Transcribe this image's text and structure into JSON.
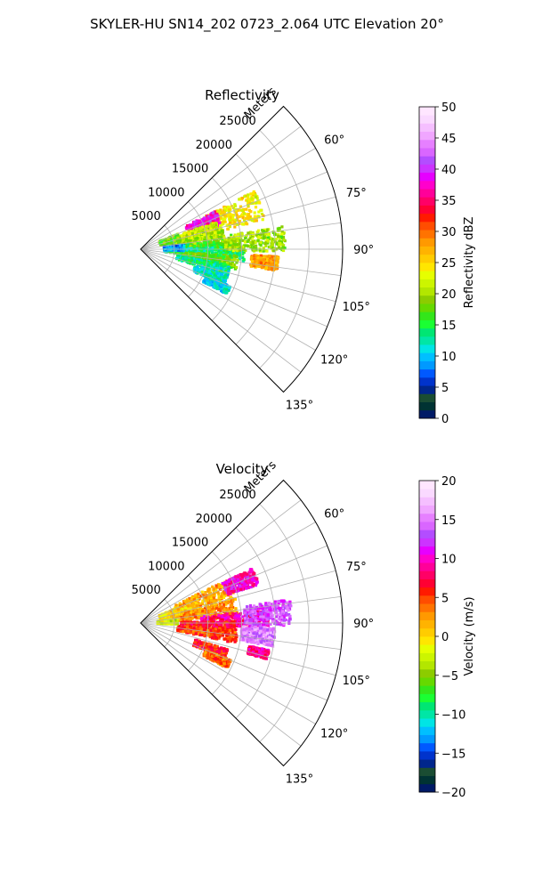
{
  "suptitle": "SKYLER-HU  SN14_202  0723_2.064 UTC Elevation 20°",
  "chart_data": [
    {
      "type": "heatmap",
      "projection": "polar-sector",
      "title": "Reflectivity",
      "range_label": "Meters",
      "range_ticks": [
        5000,
        10000,
        15000,
        20000,
        25000
      ],
      "range_max_m": 30000,
      "azimuth_range_deg": [
        45,
        135
      ],
      "azimuth_tick_labels": [
        "60°",
        "75°",
        "90°",
        "105°",
        "120°",
        "135°"
      ],
      "azimuth_ticks_deg": [
        60,
        75,
        90,
        105,
        120,
        135
      ],
      "grid": true,
      "colorbar": {
        "label": "Reflectivity dBZ",
        "min": 0,
        "max": 50,
        "ticks": [
          0,
          5,
          10,
          15,
          20,
          25,
          30,
          35,
          40,
          45,
          50
        ],
        "tick_labels": [
          "0",
          "5",
          "10",
          "15",
          "20",
          "25",
          "30",
          "35",
          "40",
          "45",
          "50"
        ],
        "colors": [
          "#001a66",
          "#003333",
          "#1a4d33",
          "#00268c",
          "#0033cc",
          "#0059ff",
          "#0099ff",
          "#00bfff",
          "#00e5e5",
          "#00e6a6",
          "#00e673",
          "#1aff33",
          "#33e61a",
          "#66d900",
          "#8ccc00",
          "#b3e600",
          "#ccf500",
          "#e6ff00",
          "#ffe600",
          "#ffcc00",
          "#ffb300",
          "#ff9900",
          "#ff7300",
          "#ff4d00",
          "#ff1a00",
          "#ff0033",
          "#ff0066",
          "#ff0099",
          "#ff00cc",
          "#e600ff",
          "#cc33ff",
          "#b34dff",
          "#d966ff",
          "#e680ff",
          "#f0a6ff",
          "#f5bfff",
          "#fad9ff",
          "#ffe6ff"
        ]
      },
      "echo_cells": [
        {
          "az": 70,
          "r": 14500,
          "w": 9000,
          "az_w": 14,
          "v": 24
        },
        {
          "az": 68,
          "r": 10000,
          "w": 5000,
          "az_w": 10,
          "v": 38
        },
        {
          "az": 76,
          "r": 9000,
          "w": 6000,
          "az_w": 12,
          "v": 22
        },
        {
          "az": 82,
          "r": 8000,
          "w": 9000,
          "az_w": 10,
          "v": 20
        },
        {
          "az": 88,
          "r": 9000,
          "w": 10000,
          "az_w": 8,
          "v": 17
        },
        {
          "az": 93,
          "r": 9500,
          "w": 12000,
          "az_w": 8,
          "v": 14
        },
        {
          "az": 98,
          "r": 10000,
          "w": 9000,
          "az_w": 8,
          "v": 18
        },
        {
          "az": 103,
          "r": 9500,
          "w": 8000,
          "az_w": 6,
          "v": 13
        },
        {
          "az": 86,
          "r": 17000,
          "w": 9000,
          "az_w": 10,
          "v": 20
        },
        {
          "az": 96,
          "r": 18500,
          "w": 4000,
          "az_w": 6,
          "v": 28
        },
        {
          "az": 110,
          "r": 11000,
          "w": 5000,
          "az_w": 6,
          "v": 12
        },
        {
          "az": 115,
          "r": 12500,
          "w": 4000,
          "az_w": 5,
          "v": 11
        },
        {
          "az": 73,
          "r": 4500,
          "w": 3000,
          "az_w": 10,
          "v": 18
        },
        {
          "az": 88,
          "r": 5000,
          "w": 3000,
          "az_w": 8,
          "v": 9
        }
      ]
    },
    {
      "type": "heatmap",
      "projection": "polar-sector",
      "title": "Velocity",
      "range_label": "Meters",
      "range_ticks": [
        5000,
        10000,
        15000,
        20000,
        25000
      ],
      "range_max_m": 30000,
      "azimuth_range_deg": [
        45,
        135
      ],
      "azimuth_tick_labels": [
        "60°",
        "75°",
        "90°",
        "105°",
        "120°",
        "135°"
      ],
      "azimuth_ticks_deg": [
        60,
        75,
        90,
        105,
        120,
        135
      ],
      "grid": true,
      "colorbar": {
        "label": "Velocity (m/s)",
        "min": -20,
        "max": 20,
        "ticks": [
          -20,
          -15,
          -10,
          -5,
          0,
          5,
          10,
          15,
          20
        ],
        "tick_labels": [
          "−20",
          "−15",
          "−10",
          "−5",
          "0",
          "5",
          "10",
          "15",
          "20"
        ],
        "colors": [
          "#001a66",
          "#003333",
          "#1a4d33",
          "#00268c",
          "#0033cc",
          "#0059ff",
          "#0099ff",
          "#00bfff",
          "#00e5e5",
          "#00e6a6",
          "#00e673",
          "#1aff33",
          "#33e61a",
          "#66d900",
          "#8ccc00",
          "#b3e600",
          "#ccf500",
          "#e6ff00",
          "#ffe600",
          "#ffcc00",
          "#ffb300",
          "#ff9900",
          "#ff7300",
          "#ff4d00",
          "#ff1a00",
          "#ff0033",
          "#ff0066",
          "#ff0099",
          "#ff00cc",
          "#e600ff",
          "#cc33ff",
          "#b34dff",
          "#d966ff",
          "#e680ff",
          "#f0a6ff",
          "#f5bfff",
          "#fad9ff",
          "#ffe6ff"
        ]
      },
      "echo_cells": [
        {
          "az": 70,
          "r": 10000,
          "w": 9000,
          "az_w": 14,
          "v": 2
        },
        {
          "az": 68,
          "r": 16000,
          "w": 5000,
          "az_w": 8,
          "v": 10
        },
        {
          "az": 76,
          "r": 6000,
          "w": 6000,
          "az_w": 12,
          "v": 1
        },
        {
          "az": 82,
          "r": 10000,
          "w": 9000,
          "az_w": 10,
          "v": 3
        },
        {
          "az": 88,
          "r": 14000,
          "w": 10000,
          "az_w": 8,
          "v": 9
        },
        {
          "az": 93,
          "r": 10000,
          "w": 8000,
          "az_w": 8,
          "v": 7
        },
        {
          "az": 98,
          "r": 10000,
          "w": 9000,
          "az_w": 8,
          "v": 5
        },
        {
          "az": 86,
          "r": 19000,
          "w": 7000,
          "az_w": 10,
          "v": 13
        },
        {
          "az": 96,
          "r": 17500,
          "w": 5000,
          "az_w": 8,
          "v": 15
        },
        {
          "az": 104,
          "r": 18000,
          "w": 3000,
          "az_w": 4,
          "v": 9
        },
        {
          "az": 110,
          "r": 11000,
          "w": 5000,
          "az_w": 6,
          "v": 6
        },
        {
          "az": 115,
          "r": 12500,
          "w": 4000,
          "az_w": 5,
          "v": 4
        },
        {
          "az": 73,
          "r": 4500,
          "w": 3000,
          "az_w": 10,
          "v": 0
        },
        {
          "az": 88,
          "r": 4000,
          "w": 3000,
          "az_w": 8,
          "v": -2
        }
      ]
    }
  ]
}
